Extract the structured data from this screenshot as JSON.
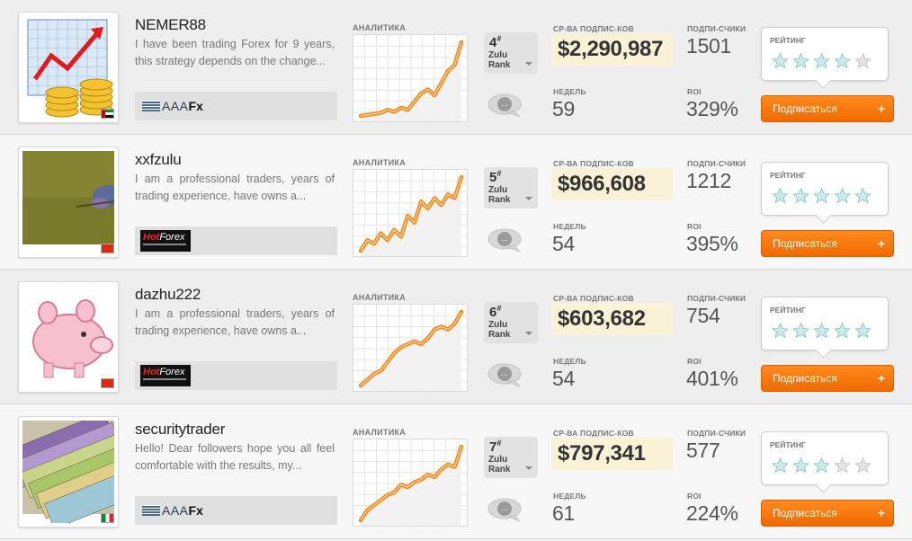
{
  "labels": {
    "analytics": "АНАЛИТИКА",
    "avg_subscribers": "СР-ВА ПОДПИС-КОВ",
    "weeks": "НЕДЕЛЬ",
    "subscribers": "ПОДПИ-СЧИКИ",
    "roi": "ROI",
    "rating": "РЕЙТИНГ",
    "zulu": "Zulu",
    "rank": "Rank",
    "subscribe": "Подписаться",
    "plus": "+",
    "comment": "...",
    "rank_hash": "#"
  },
  "colors": {
    "accent": "#f47b0e",
    "chart_line": "#f48a1f",
    "value_highlight": "#f9f2d7",
    "star_fill": "#c9ebeb",
    "star_empty": "#e3e3e3"
  },
  "traders": [
    {
      "name": "NEMER88",
      "description": "I have been trading Forex for 9 years, this strategy depends on the change...",
      "broker": "AAAFx",
      "broker_icon": "aaafx-logo",
      "avatar_icon": "chart-coins-icon",
      "flag": "uae-flag",
      "rank": "4",
      "avg_value": "$2,290,987",
      "subscribers": "1501",
      "weeks": "59",
      "roi": "329%",
      "stars": 4,
      "chart_points": [
        0,
        0.5,
        1,
        1.5,
        3,
        2,
        4,
        3,
        7,
        11,
        13,
        10,
        16,
        22,
        25,
        36
      ]
    },
    {
      "name": "xxfzulu",
      "description": "I am a professional traders, years of trading experience, have owns a...",
      "broker": "HotForex",
      "broker_icon": "hotforex-logo",
      "avatar_icon": "butterfly-photo",
      "flag": "china-flag",
      "rank": "5",
      "avg_value": "$966,608",
      "subscribers": "1212",
      "weeks": "54",
      "roi": "395%",
      "stars": 5,
      "chart_points": [
        0,
        6,
        4,
        10,
        6,
        12,
        8,
        20,
        16,
        28,
        24,
        30,
        26,
        32,
        30,
        42
      ]
    },
    {
      "name": "dazhu222",
      "description": "I am a professional traders, years of trading experience, have owns a...",
      "broker": "HotForex",
      "broker_icon": "hotforex-logo",
      "avatar_icon": "pig-icon",
      "flag": "china-flag",
      "rank": "6",
      "avg_value": "$603,682",
      "subscribers": "754",
      "weeks": "54",
      "roi": "401%",
      "stars": 5,
      "chart_points": [
        0,
        4,
        8,
        10,
        16,
        22,
        26,
        28,
        30,
        28,
        32,
        38,
        40,
        38,
        42,
        50
      ]
    },
    {
      "name": "securitytrader",
      "description": "Hello! Dear followers hope you all feel comfortable with the results, my...",
      "broker": "AAAFx",
      "broker_icon": "aaafx-logo",
      "avatar_icon": "banknotes-photo",
      "flag": "italy-flag",
      "rank": "7",
      "avg_value": "$797,341",
      "subscribers": "577",
      "weeks": "61",
      "roi": "224%",
      "stars": 3,
      "chart_points": [
        0,
        8,
        12,
        16,
        20,
        22,
        28,
        26,
        30,
        32,
        36,
        34,
        40,
        44,
        42,
        58
      ]
    }
  ]
}
